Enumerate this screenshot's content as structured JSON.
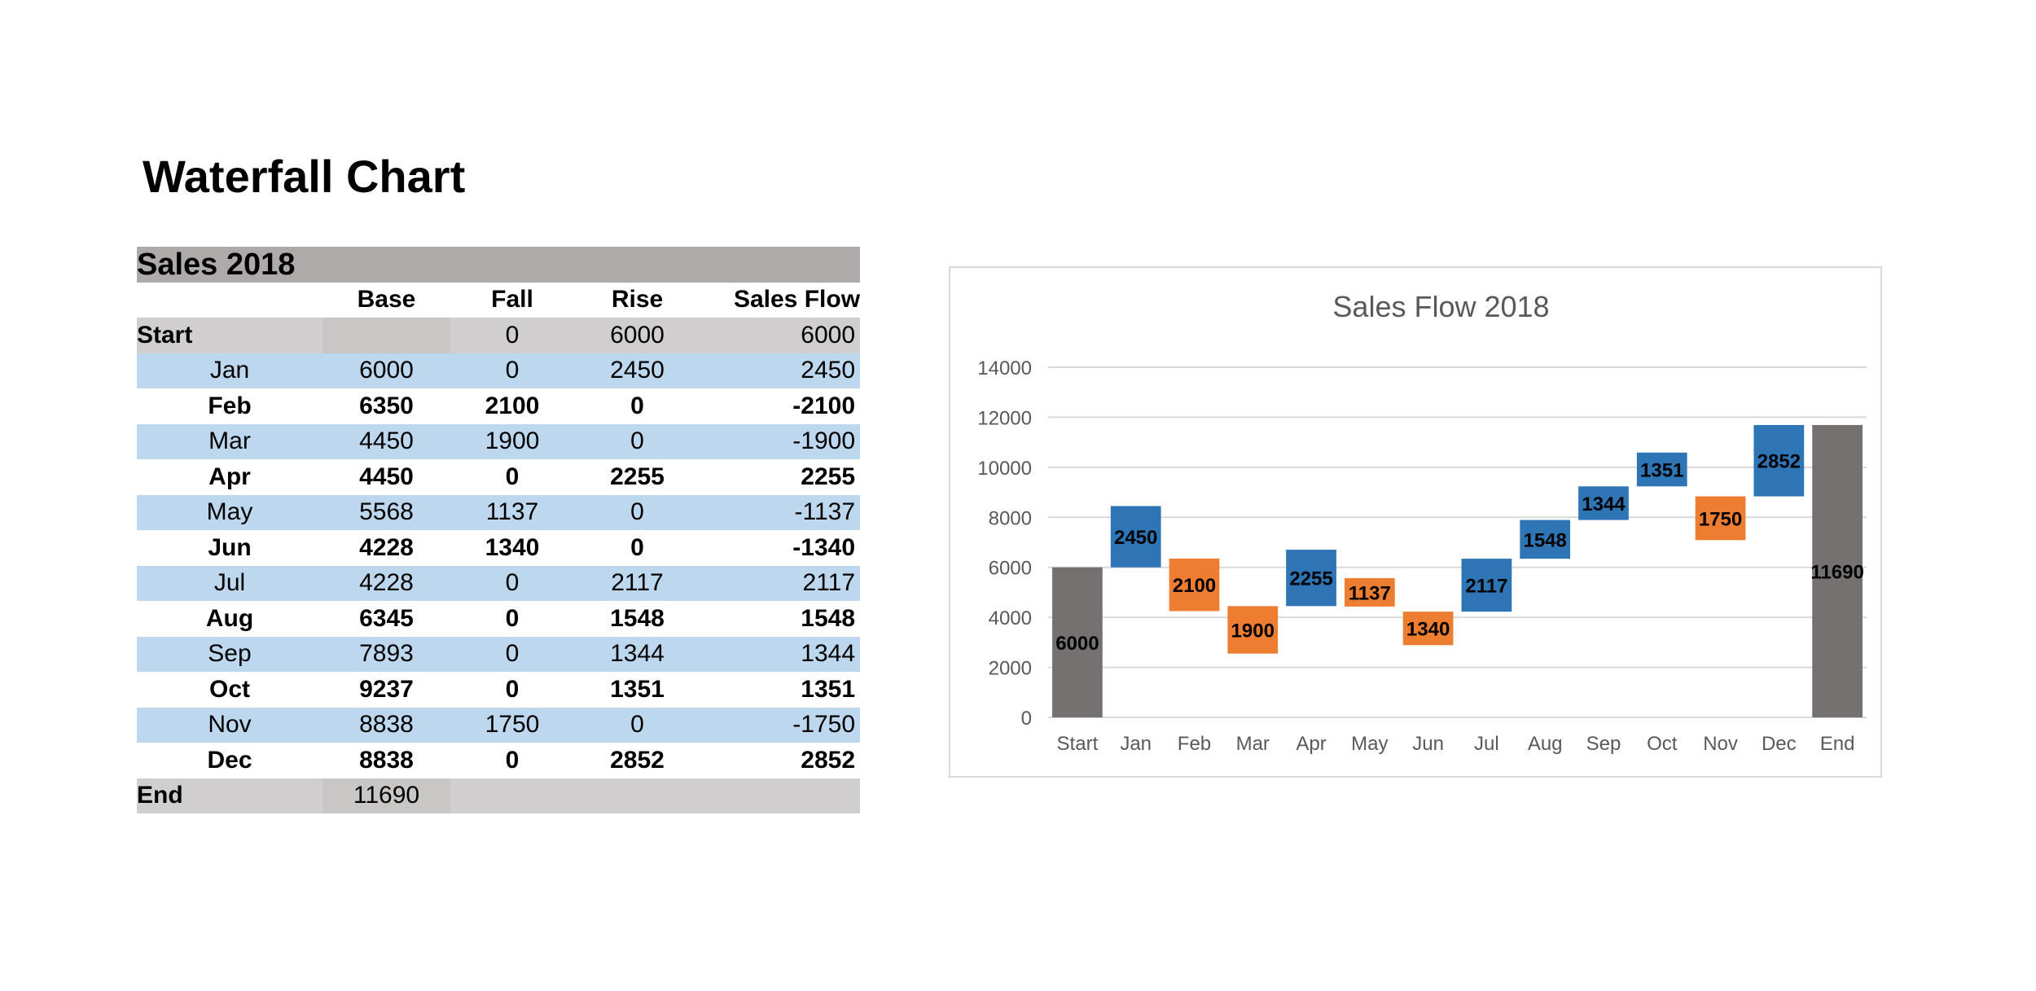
{
  "page": {
    "title": "Waterfall Chart"
  },
  "table": {
    "title": "Sales 2018",
    "headers": [
      "",
      "Base",
      "Fall",
      "Rise",
      "Sales Flow"
    ],
    "start_row": {
      "label": "Start",
      "base": "",
      "fall": "0",
      "rise": "6000",
      "flow": "6000"
    },
    "rows": [
      {
        "month": "Jan",
        "base": "6000",
        "fall": "0",
        "rise": "2450",
        "flow": "2450",
        "style": "blue"
      },
      {
        "month": "Feb",
        "base": "6350",
        "fall": "2100",
        "rise": "0",
        "flow": "-2100",
        "style": "white"
      },
      {
        "month": "Mar",
        "base": "4450",
        "fall": "1900",
        "rise": "0",
        "flow": "-1900",
        "style": "blue"
      },
      {
        "month": "Apr",
        "base": "4450",
        "fall": "0",
        "rise": "2255",
        "flow": "2255",
        "style": "white"
      },
      {
        "month": "May",
        "base": "5568",
        "fall": "1137",
        "rise": "0",
        "flow": "-1137",
        "style": "blue"
      },
      {
        "month": "Jun",
        "base": "4228",
        "fall": "1340",
        "rise": "0",
        "flow": "-1340",
        "style": "white"
      },
      {
        "month": "Jul",
        "base": "4228",
        "fall": "0",
        "rise": "2117",
        "flow": "2117",
        "style": "blue"
      },
      {
        "month": "Aug",
        "base": "6345",
        "fall": "0",
        "rise": "1548",
        "flow": "1548",
        "style": "white"
      },
      {
        "month": "Sep",
        "base": "7893",
        "fall": "0",
        "rise": "1344",
        "flow": "1344",
        "style": "blue"
      },
      {
        "month": "Oct",
        "base": "9237",
        "fall": "0",
        "rise": "1351",
        "flow": "1351",
        "style": "white"
      },
      {
        "month": "Nov",
        "base": "8838",
        "fall": "1750",
        "rise": "0",
        "flow": "-1750",
        "style": "blue"
      },
      {
        "month": "Dec",
        "base": "8838",
        "fall": "0",
        "rise": "2852",
        "flow": "2852",
        "style": "white"
      }
    ],
    "end_row": {
      "label": "End",
      "base": "11690"
    }
  },
  "chart_data": {
    "type": "bar",
    "subtype": "waterfall",
    "title": "Sales Flow 2018",
    "xlabel": "",
    "ylabel": "",
    "ylim": [
      0,
      14000
    ],
    "yticks": [
      0,
      2000,
      4000,
      6000,
      8000,
      10000,
      12000,
      14000
    ],
    "grid": true,
    "legend": "none",
    "categories": [
      "Start",
      "Jan",
      "Feb",
      "Mar",
      "Apr",
      "May",
      "Jun",
      "Jul",
      "Aug",
      "Sep",
      "Oct",
      "Nov",
      "Dec",
      "End"
    ],
    "base": [
      0,
      6000,
      6350,
      4450,
      4450,
      5568,
      4228,
      4228,
      6345,
      7893,
      9237,
      8838,
      8838,
      0
    ],
    "fall": [
      0,
      0,
      2100,
      1900,
      0,
      1137,
      1340,
      0,
      0,
      0,
      0,
      1750,
      0,
      0
    ],
    "rise": [
      0,
      2450,
      0,
      0,
      2255,
      0,
      0,
      2117,
      1548,
      1344,
      1351,
      0,
      2852,
      0
    ],
    "total": [
      6000,
      0,
      0,
      0,
      0,
      0,
      0,
      0,
      0,
      0,
      0,
      0,
      0,
      11690
    ],
    "data_labels": [
      "6000",
      "2450",
      "2100",
      "1900",
      "2255",
      "1137",
      "1340",
      "2117",
      "1548",
      "1344",
      "1351",
      "1750",
      "2852",
      "11690"
    ],
    "colors": {
      "total": "#767171",
      "rise": "#2e75b6",
      "fall": "#ed7d31",
      "grid": "#d9d9d9",
      "axis_text": "#595959"
    }
  }
}
